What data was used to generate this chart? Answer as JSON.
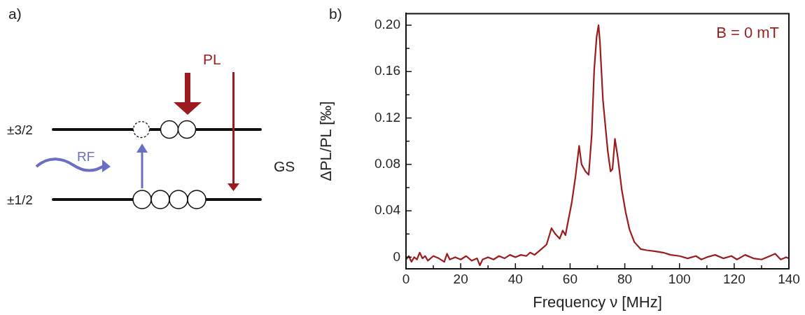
{
  "chart_data": [
    {
      "type": "other",
      "title": "a)",
      "annotations": [
        "±3/2",
        "±1/2",
        "RF",
        "PL",
        "GS"
      ]
    },
    {
      "type": "line",
      "title": "b)",
      "xlabel": "Frequency ν [MHz]",
      "ylabel": "ΔPL/PL [‰]",
      "annotations": [
        "B = 0 mT"
      ],
      "xlim": [
        0,
        140
      ],
      "ylim": [
        -0.01,
        0.21
      ],
      "xticks": [
        0,
        {
          "value": 10,
          "label": null
        },
        20,
        {
          "value": 30,
          "label": null
        },
        40,
        {
          "value": 50,
          "label": null
        },
        60,
        {
          "value": 70,
          "label": null
        },
        80,
        {
          "value": 90,
          "label": null
        },
        100,
        {
          "value": 110,
          "label": null
        },
        120,
        {
          "value": 130,
          "label": null
        },
        140
      ],
      "yticks": [
        0,
        {
          "value": 0.02,
          "label": null
        },
        0.04,
        {
          "value": 0.06,
          "label": null
        },
        0.08,
        {
          "value": 0.1,
          "label": null
        },
        0.12,
        {
          "value": 0.14,
          "label": null
        },
        0.16,
        {
          "value": 0.18,
          "label": null
        },
        {
          "value": 0.2,
          "label": "0.20"
        }
      ],
      "grid": false,
      "legend": false,
      "marker": "none",
      "line_style": "solid",
      "series": [
        {
          "color": "#9b1b1e",
          "x": [
            0,
            1,
            2,
            3,
            4,
            5,
            6,
            7,
            8,
            10,
            12,
            14,
            15,
            16,
            18,
            20,
            22,
            24,
            26,
            27,
            28,
            30,
            32,
            34,
            36,
            38,
            40,
            42,
            44,
            45.4,
            47,
            49.5,
            51.4,
            53.2,
            54.6,
            56.2,
            57.3,
            58.3,
            59.6,
            60.6,
            62,
            63.3,
            64.2,
            65.6,
            66.8,
            67.9,
            68.8,
            69.7,
            70.4,
            70.9,
            72,
            72.9,
            73.8,
            74.8,
            75.5,
            76.4,
            77.5,
            78.9,
            80.3,
            81.7,
            83.5,
            85.8,
            88,
            91.3,
            94,
            96.8,
            100,
            103,
            106,
            108,
            110,
            113,
            116,
            119,
            121,
            124,
            127,
            130,
            132,
            135,
            137,
            139,
            140
          ],
          "values": [
            -0.002,
            0.001,
            -0.004,
            0.0,
            -0.002,
            0.004,
            -0.001,
            0.001,
            -0.003,
            0.001,
            -0.001,
            -0.004,
            0.003,
            -0.002,
            0.0,
            -0.002,
            0.001,
            -0.003,
            -0.001,
            -0.007,
            -0.002,
            0.0,
            -0.002,
            0.001,
            -0.001,
            0.002,
            0.0,
            0.002,
            0.001,
            0.004,
            0.002,
            0.007,
            0.011,
            0.025,
            0.02,
            0.016,
            0.023,
            0.019,
            0.035,
            0.047,
            0.07,
            0.096,
            0.08,
            0.074,
            0.071,
            0.105,
            0.161,
            0.19,
            0.2,
            0.186,
            0.136,
            0.113,
            0.091,
            0.074,
            0.076,
            0.102,
            0.085,
            0.058,
            0.039,
            0.024,
            0.013,
            0.007,
            0.006,
            0.005,
            0.004,
            0.002,
            0.001,
            -0.001,
            0.001,
            -0.002,
            0.0,
            0.002,
            -0.001,
            0.001,
            -0.002,
            0.002,
            -0.001,
            -0.002,
            0.0,
            0.003,
            -0.002,
            0.0,
            -0.001
          ]
        }
      ]
    }
  ]
}
